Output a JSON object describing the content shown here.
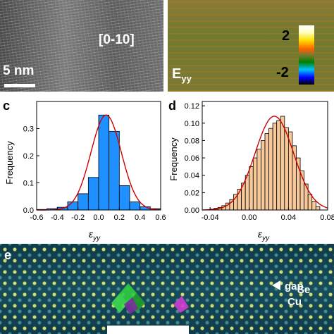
{
  "panel_a": {
    "direction_label": "[0-10]",
    "scale_label": "5 nm"
  },
  "panel_b": {
    "map_label": "E",
    "map_label_sub": "yy",
    "colorbar_max": "2",
    "colorbar_min": "-2"
  },
  "panel_e": {
    "letter": "e",
    "gap_label": "gap",
    "se_label": "Se",
    "cu_label": "Cu"
  },
  "chart_data": [
    {
      "panel": "c",
      "type": "bar",
      "ylabel": "Frequency",
      "xlabel": "ε",
      "xlabel_sub": "yy",
      "x_ticks": [
        "-0.6",
        "-0.4",
        "-0.2",
        "0.0",
        "0.2",
        "0.4",
        "0.6"
      ],
      "y_ticks": [
        "0.0",
        "0.1",
        "0.2",
        "0.3"
      ],
      "xlim": [
        -0.6,
        0.6
      ],
      "ylim": [
        0,
        0.4
      ],
      "bin_width": 0.1,
      "bins": [
        -0.6,
        -0.5,
        -0.4,
        -0.3,
        -0.2,
        -0.1,
        0.0,
        0.1,
        0.2,
        0.3,
        0.4,
        0.5
      ],
      "values": [
        0.002,
        0.005,
        0.01,
        0.03,
        0.06,
        0.12,
        0.35,
        0.29,
        0.09,
        0.03,
        0.012,
        0.005
      ],
      "fit_curve": "gaussian",
      "bar_color": "#1e90ff",
      "fit_color": "#cc0000"
    },
    {
      "panel": "d",
      "type": "bar",
      "ylabel": "Frequency",
      "xlabel": "ε",
      "xlabel_sub": "yy",
      "x_ticks": [
        "-0.04",
        "0.00",
        "0.04",
        "0.08"
      ],
      "y_ticks": [
        "0.00",
        "0.02",
        "0.04",
        "0.06",
        "0.08",
        "0.10",
        "0.12"
      ],
      "xlim": [
        -0.048,
        0.08
      ],
      "ylim": [
        0,
        0.125
      ],
      "bin_width": 0.004,
      "bins": [
        -0.04,
        -0.036,
        -0.032,
        -0.028,
        -0.024,
        -0.02,
        -0.016,
        -0.012,
        -0.008,
        -0.004,
        0.0,
        0.004,
        0.008,
        0.012,
        0.016,
        0.02,
        0.024,
        0.028,
        0.032,
        0.036,
        0.04,
        0.044,
        0.048,
        0.052,
        0.056,
        0.06,
        0.064,
        0.068
      ],
      "values": [
        0.001,
        0.002,
        0.003,
        0.005,
        0.008,
        0.012,
        0.018,
        0.024,
        0.031,
        0.04,
        0.05,
        0.06,
        0.07,
        0.08,
        0.088,
        0.094,
        0.1,
        0.103,
        0.108,
        0.095,
        0.09,
        0.074,
        0.06,
        0.045,
        0.03,
        0.018,
        0.01,
        0.004
      ],
      "fit_curve": "gaussian",
      "bar_color": "#f7c99a",
      "fit_color": "#cc0000"
    }
  ]
}
